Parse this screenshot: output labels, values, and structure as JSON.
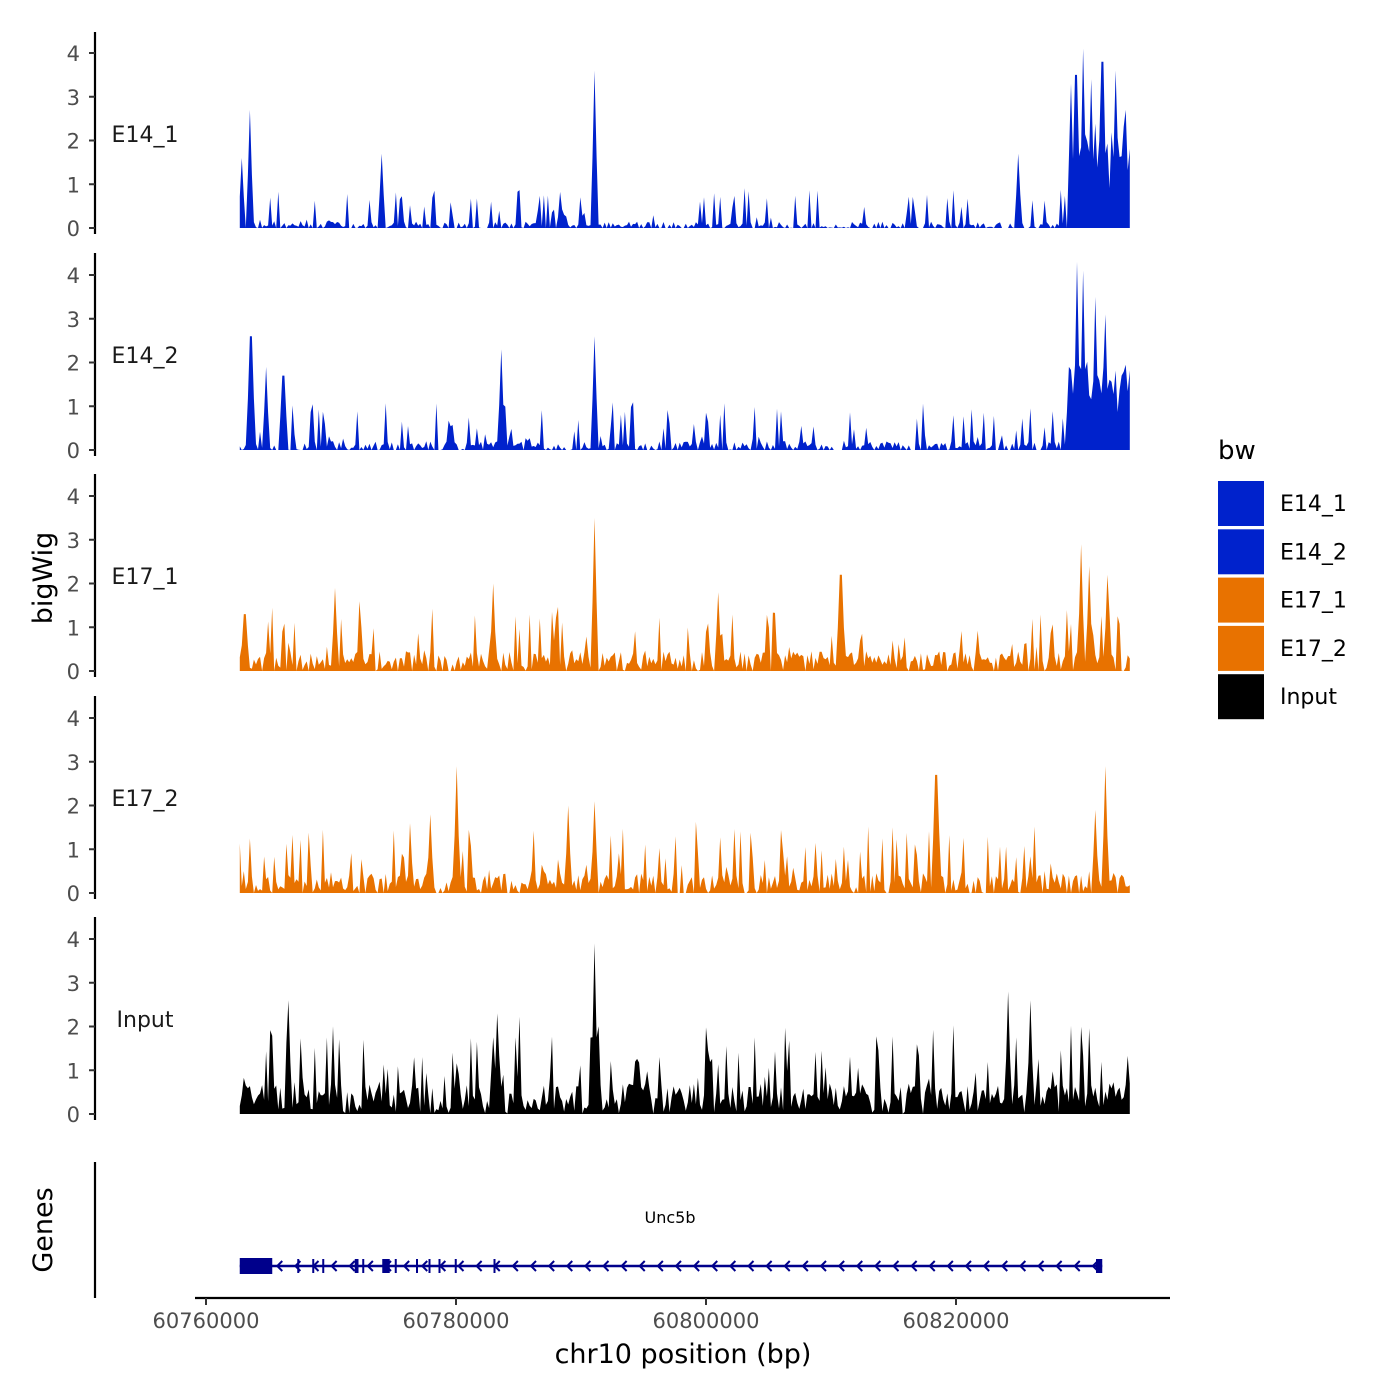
{
  "chart_data": {
    "type": "area",
    "title": "",
    "xlabel": "chr10 position (bp)",
    "ylabel": "bigWig",
    "genes_label": "Genes",
    "xlim": [
      60758000,
      60836000
    ],
    "ylim": [
      0,
      4.5
    ],
    "x_ticks": [
      60760000,
      60780000,
      60800000,
      60820000
    ],
    "x_tick_labels": [
      "60760000",
      "60780000",
      "60800000",
      "60820000"
    ],
    "y_ticks": [
      0,
      1,
      2,
      3,
      4
    ],
    "y_tick_labels": [
      "0",
      "1",
      "2",
      "3",
      "4"
    ],
    "data_start": 60762700,
    "data_end": 60833900,
    "legend": {
      "title": "bw",
      "position": "right",
      "entries": [
        {
          "name": "E14_1",
          "color": "#0022CC"
        },
        {
          "name": "E14_2",
          "color": "#0022CC"
        },
        {
          "name": "E17_1",
          "color": "#E87200"
        },
        {
          "name": "E17_2",
          "color": "#E87200"
        },
        {
          "name": "Input",
          "color": "#000000"
        }
      ]
    },
    "series": [
      {
        "name": "E14_1",
        "label": "E14_1",
        "color": "#0022CC",
        "background": 0.15,
        "noise": 0.5,
        "gap_rate": 0.22,
        "peaks": [
          {
            "x": 60762900,
            "y": 1.6
          },
          {
            "x": 60763500,
            "y": 2.7
          },
          {
            "x": 60791100,
            "y": 3.6
          },
          {
            "x": 60774000,
            "y": 1.7
          },
          {
            "x": 60825000,
            "y": 1.7
          },
          {
            "x": 60829200,
            "y": 3.3
          },
          {
            "x": 60829600,
            "y": 3.5
          },
          {
            "x": 60830200,
            "y": 4.1
          },
          {
            "x": 60830800,
            "y": 3.4
          },
          {
            "x": 60831700,
            "y": 3.8
          },
          {
            "x": 60832700,
            "y": 3.6
          },
          {
            "x": 60833600,
            "y": 2.7
          }
        ],
        "broad": [
          {
            "from": 60828900,
            "to": 60833900,
            "level": 2.0
          }
        ]
      },
      {
        "name": "E14_2",
        "label": "E14_2",
        "color": "#0022CC",
        "background": 0.2,
        "noise": 0.6,
        "gap_rate": 0.2,
        "peaks": [
          {
            "x": 60763600,
            "y": 2.6
          },
          {
            "x": 60764800,
            "y": 1.9
          },
          {
            "x": 60766200,
            "y": 1.7
          },
          {
            "x": 60783600,
            "y": 2.3
          },
          {
            "x": 60791100,
            "y": 2.6
          },
          {
            "x": 60829000,
            "y": 1.9
          },
          {
            "x": 60829700,
            "y": 4.3
          },
          {
            "x": 60830200,
            "y": 4.1
          },
          {
            "x": 60831100,
            "y": 3.5
          },
          {
            "x": 60832000,
            "y": 3.1
          },
          {
            "x": 60833300,
            "y": 1.7
          }
        ],
        "broad": [
          {
            "from": 60829000,
            "to": 60833900,
            "level": 1.6
          }
        ]
      },
      {
        "name": "E17_1",
        "label": "E17_1",
        "color": "#E87200",
        "background": 0.45,
        "noise": 0.75,
        "gap_rate": 0.06,
        "peaks": [
          {
            "x": 60763100,
            "y": 1.3
          },
          {
            "x": 60770300,
            "y": 1.9
          },
          {
            "x": 60783000,
            "y": 2.0
          },
          {
            "x": 60791100,
            "y": 3.5
          },
          {
            "x": 60801000,
            "y": 1.8
          },
          {
            "x": 60810800,
            "y": 2.2
          },
          {
            "x": 60830000,
            "y": 2.9
          },
          {
            "x": 60830700,
            "y": 2.4
          },
          {
            "x": 60832100,
            "y": 2.2
          }
        ],
        "broad": []
      },
      {
        "name": "E17_2",
        "label": "E17_2",
        "color": "#E87200",
        "background": 0.45,
        "noise": 0.8,
        "gap_rate": 0.07,
        "peaks": [
          {
            "x": 60778000,
            "y": 1.8
          },
          {
            "x": 60780100,
            "y": 2.9
          },
          {
            "x": 60789000,
            "y": 2.0
          },
          {
            "x": 60791100,
            "y": 2.1
          },
          {
            "x": 60818400,
            "y": 2.7
          },
          {
            "x": 60831200,
            "y": 1.9
          },
          {
            "x": 60832000,
            "y": 2.9
          }
        ],
        "broad": []
      },
      {
        "name": "Input",
        "label": "Input",
        "color": "#000000",
        "background": 0.7,
        "noise": 1.0,
        "gap_rate": 0.0,
        "peaks": [
          {
            "x": 60766600,
            "y": 2.6
          },
          {
            "x": 60783300,
            "y": 2.3
          },
          {
            "x": 60791100,
            "y": 3.9
          },
          {
            "x": 60824200,
            "y": 2.8
          },
          {
            "x": 60826000,
            "y": 2.6
          }
        ],
        "broad": []
      }
    ],
    "gene": {
      "name": "Unc5b",
      "start": 60762700,
      "end": 60831700,
      "strand": "-",
      "color": "#00008B",
      "exons": [
        [
          60762700,
          60765300
        ],
        [
          60767300,
          60767400
        ],
        [
          60768500,
          60768600
        ],
        [
          60769300,
          60769400
        ],
        [
          60771900,
          60772200
        ],
        [
          60772500,
          60772600
        ],
        [
          60774100,
          60774700
        ],
        [
          60775100,
          60775200
        ],
        [
          60776800,
          60776900
        ],
        [
          60777800,
          60777900
        ],
        [
          60778600,
          60778700
        ],
        [
          60779900,
          60780000
        ],
        [
          60783000,
          60783100
        ],
        [
          60831200,
          60831700
        ]
      ]
    }
  }
}
